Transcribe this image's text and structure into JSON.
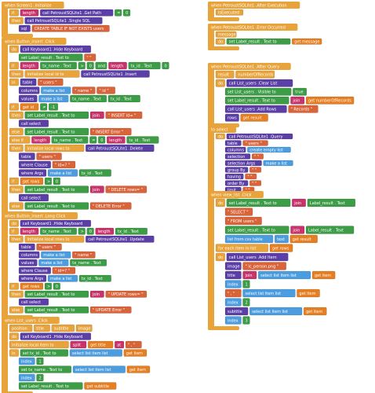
{
  "groups": [
    {
      "header": "when Screen1 .Initialize",
      "rows": [
        [
          {
            "t": "if",
            "c": "#e8a33a"
          },
          {
            "t": "length",
            "c": "#c8336b"
          },
          {
            "t": "call PetroustSQLite1 .Get Path",
            "c": "#5b3fa6"
          },
          {
            "t": "=",
            "c": "#3d9c46"
          },
          {
            "t": "0",
            "c": "#3d9c46"
          }
        ],
        [
          {
            "t": "then",
            "c": "#e8a33a"
          },
          {
            "t": "call PetroustSQLite1 .Single SQL",
            "c": "#5b3fa6"
          }
        ],
        [
          {
            "t": "sql",
            "c": "#5b3fa6"
          },
          {
            "t": "CREATE TABLE IF NOT EXISTS users",
            "c": "#d9643a"
          }
        ]
      ]
    },
    {
      "header": "when Button_insert .Click",
      "rows": [
        [
          {
            "t": "do",
            "c": "#e8a33a"
          },
          {
            "t": "call Keyboard1 .Hide Keyboard",
            "c": "#5b3fa6"
          }
        ],
        [
          {
            "t": "set Label_result . Text to",
            "c": "#3d9c46"
          },
          {
            "t": "\" \"",
            "c": "#d9643a"
          }
        ],
        [
          {
            "t": "if",
            "c": "#e8a33a"
          },
          {
            "t": "length",
            "c": "#c8336b"
          },
          {
            "t": "tx_name . Text",
            "c": "#3d9c46"
          },
          {
            "t": ">",
            "c": "#3d9c46"
          },
          {
            "t": "0",
            "c": "#3d9c46"
          },
          {
            "t": "and",
            "c": "#3d9c46"
          },
          {
            "t": "length",
            "c": "#c8336b"
          },
          {
            "t": "tx_id . Text",
            "c": "#3d9c46"
          },
          {
            "t": "0",
            "c": "#3d9c46"
          }
        ],
        [
          {
            "t": "then",
            "c": "#e8a33a"
          },
          {
            "t": "initialize local id to",
            "c": "#e8a33a"
          },
          {
            "t": "call PetroustSQLite1 .Insert",
            "c": "#5b3fa6"
          }
        ],
        [
          {
            "t": "in",
            "c": "#e8a33a"
          },
          {
            "t": "table",
            "c": "#5b3fa6"
          },
          {
            "t": "\" users \"",
            "c": "#d9643a"
          }
        ],
        [
          {
            "t": "columns",
            "c": "#5b3fa6"
          },
          {
            "t": "make a list",
            "c": "#4c9de0"
          },
          {
            "t": "\" name \"",
            "c": "#d9643a"
          },
          {
            "t": "\" id \"",
            "c": "#d9643a"
          }
        ],
        [
          {
            "t": "values",
            "c": "#5b3fa6"
          },
          {
            "t": "make a list",
            "c": "#4c9de0"
          },
          {
            "t": "tx_name . Text",
            "c": "#3d9c46"
          },
          {
            "t": "tx_id . Text",
            "c": "#3d9c46"
          }
        ],
        [
          {
            "t": "if",
            "c": "#e8a33a"
          },
          {
            "t": "get id",
            "c": "#e67e22"
          },
          {
            "t": "≠",
            "c": "#3d9c46"
          },
          {
            "t": "-1",
            "c": "#3d9c46"
          }
        ],
        [
          {
            "t": "then",
            "c": "#e8a33a"
          },
          {
            "t": "set Label_result . Text to",
            "c": "#3d9c46"
          },
          {
            "t": "join",
            "c": "#c8336b"
          },
          {
            "t": "\" INSERT id= \"",
            "c": "#d9643a"
          }
        ],
        [
          {
            "t": "call select",
            "c": "#5b3fa6"
          }
        ],
        [
          {
            "t": "else",
            "c": "#e8a33a"
          },
          {
            "t": "set Label_result . Text to",
            "c": "#3d9c46"
          },
          {
            "t": "\" INSERT Error \"",
            "c": "#d9643a"
          }
        ],
        [
          {
            "t": "else if",
            "c": "#e8a33a"
          },
          {
            "t": "length",
            "c": "#c8336b"
          },
          {
            "t": "tx_name . Text",
            "c": "#3d9c46"
          },
          {
            "t": "=",
            "c": "#3d9c46"
          },
          {
            "t": "0",
            "c": "#3d9c46"
          },
          {
            "t": "length",
            "c": "#c8336b"
          },
          {
            "t": "tx_id . Text",
            "c": "#3d9c46"
          }
        ],
        [
          {
            "t": "then",
            "c": "#e8a33a"
          },
          {
            "t": "initialize local rows to",
            "c": "#e8a33a"
          },
          {
            "t": "call PetroustSQLite1 .Delete",
            "c": "#5b3fa6"
          }
        ],
        [
          {
            "t": "table",
            "c": "#5b3fa6"
          },
          {
            "t": "\" users \"",
            "c": "#d9643a"
          }
        ],
        [
          {
            "t": "where Clause",
            "c": "#5b3fa6"
          },
          {
            "t": "\" id=? \"",
            "c": "#d9643a"
          }
        ],
        [
          {
            "t": "where Args",
            "c": "#5b3fa6"
          },
          {
            "t": "make a list",
            "c": "#4c9de0"
          },
          {
            "t": "tx_id . Text",
            "c": "#3d9c46"
          }
        ],
        [
          {
            "t": "if",
            "c": "#e8a33a"
          },
          {
            "t": "get rows",
            "c": "#e67e22"
          },
          {
            "t": ">",
            "c": "#3d9c46"
          },
          {
            "t": "0",
            "c": "#3d9c46"
          }
        ],
        [
          {
            "t": "then",
            "c": "#e8a33a"
          },
          {
            "t": "set Label_result . Text to",
            "c": "#3d9c46"
          },
          {
            "t": "join",
            "c": "#c8336b"
          },
          {
            "t": "\" DELETE rows= \"",
            "c": "#d9643a"
          }
        ],
        [
          {
            "t": "call select",
            "c": "#5b3fa6"
          }
        ],
        [
          {
            "t": "else",
            "c": "#e8a33a"
          },
          {
            "t": "set Label_result . Text to",
            "c": "#3d9c46"
          },
          {
            "t": "\" DELETE Error \"",
            "c": "#d9643a"
          }
        ]
      ]
    },
    {
      "header": "when Button_insert .Long Click",
      "rows": [
        [
          {
            "t": "do",
            "c": "#e8a33a"
          },
          {
            "t": "call Keyboard1 .Hide Keyboard",
            "c": "#5b3fa6"
          }
        ],
        [
          {
            "t": "if",
            "c": "#e8a33a"
          },
          {
            "t": "length",
            "c": "#c8336b"
          },
          {
            "t": "tx_name . Text",
            "c": "#3d9c46"
          },
          {
            "t": ">",
            "c": "#3d9c46"
          },
          {
            "t": "0",
            "c": "#3d9c46"
          },
          {
            "t": "length",
            "c": "#c8336b"
          },
          {
            "t": "tx_id . Text",
            "c": "#3d9c46"
          }
        ],
        [
          {
            "t": "then",
            "c": "#e8a33a"
          },
          {
            "t": "initialize local rows to",
            "c": "#e8a33a"
          },
          {
            "t": "call PetroustSQLite1 .Update",
            "c": "#5b3fa6"
          }
        ],
        [
          {
            "t": "table",
            "c": "#5b3fa6"
          },
          {
            "t": "\" users \"",
            "c": "#d9643a"
          }
        ],
        [
          {
            "t": "columns",
            "c": "#5b3fa6"
          },
          {
            "t": "make a list",
            "c": "#4c9de0"
          },
          {
            "t": "\" name \"",
            "c": "#d9643a"
          }
        ],
        [
          {
            "t": "values",
            "c": "#5b3fa6"
          },
          {
            "t": "make a list",
            "c": "#4c9de0"
          },
          {
            "t": "tx_name . Text",
            "c": "#3d9c46"
          }
        ],
        [
          {
            "t": "where Clause",
            "c": "#5b3fa6"
          },
          {
            "t": "\" id=? \"",
            "c": "#d9643a"
          }
        ],
        [
          {
            "t": "where Args",
            "c": "#5b3fa6"
          },
          {
            "t": "make a list",
            "c": "#4c9de0"
          },
          {
            "t": "tx_id . Text",
            "c": "#3d9c46"
          }
        ],
        [
          {
            "t": "if",
            "c": "#e8a33a"
          },
          {
            "t": "get rows",
            "c": "#e67e22"
          },
          {
            "t": ">",
            "c": "#3d9c46"
          },
          {
            "t": "0",
            "c": "#3d9c46"
          }
        ],
        [
          {
            "t": "then",
            "c": "#e8a33a"
          },
          {
            "t": "set Label_result . Text to",
            "c": "#3d9c46"
          },
          {
            "t": "join",
            "c": "#c8336b"
          },
          {
            "t": "\" UPDATE rows= \"",
            "c": "#d9643a"
          }
        ],
        [
          {
            "t": "call select",
            "c": "#5b3fa6"
          }
        ],
        [
          {
            "t": "else",
            "c": "#e8a33a"
          },
          {
            "t": "set Label_result . Text to",
            "c": "#3d9c46"
          },
          {
            "t": "\" UPDATE Error \"",
            "c": "#d9643a"
          }
        ]
      ]
    },
    {
      "header": "when List_users .Click",
      "rows": [
        [
          {
            "t": "position",
            "c": "#e8a33a"
          },
          {
            "t": "title",
            "c": "#e8a33a"
          },
          {
            "t": "subtitle",
            "c": "#e8a33a"
          },
          {
            "t": "image",
            "c": "#e8a33a"
          }
        ],
        [
          {
            "t": "do",
            "c": "#e8a33a"
          },
          {
            "t": "call Keyboard1 .Hide Keyboard",
            "c": "#5b3fa6"
          }
        ],
        [
          {
            "t": "initialize local item to",
            "c": "#e8a33a"
          },
          {
            "t": "split",
            "c": "#c8336b"
          },
          {
            "t": "get title",
            "c": "#e67e22"
          },
          {
            "t": "at",
            "c": "#c8336b"
          },
          {
            "t": "\" , \"",
            "c": "#d9643a"
          }
        ],
        [
          {
            "t": "in",
            "c": "#e8a33a"
          },
          {
            "t": "set tx_id . Text to",
            "c": "#3d9c46"
          },
          {
            "t": "select list item list",
            "c": "#4c9de0"
          },
          {
            "t": "get item",
            "c": "#e67e22"
          }
        ],
        [
          {
            "t": "index",
            "c": "#4c9de0"
          },
          {
            "t": "1",
            "c": "#3d9c46"
          }
        ],
        [
          {
            "t": "set tx_name . Text to",
            "c": "#3d9c46"
          },
          {
            "t": "select list item list",
            "c": "#4c9de0"
          },
          {
            "t": "get item",
            "c": "#e67e22"
          }
        ],
        [
          {
            "t": "index",
            "c": "#4c9de0"
          },
          {
            "t": "2",
            "c": "#3d9c46"
          }
        ],
        [
          {
            "t": "set Label_result . Text to",
            "c": "#3d9c46"
          },
          {
            "t": "get subtitle",
            "c": "#e67e22"
          }
        ]
      ]
    },
    {
      "header": "when PetroustSQLite1 .After Execution",
      "rows": [
        [
          {
            "t": "isExecuted",
            "c": "#e8a33a"
          }
        ]
      ]
    },
    {
      "header": "when PetroustSQLite1 .Error Occurred",
      "rows": [
        [
          {
            "t": "message",
            "c": "#e8a33a"
          }
        ],
        [
          {
            "t": "do",
            "c": "#e8a33a"
          },
          {
            "t": "set Label_result . Text to",
            "c": "#3d9c46"
          },
          {
            "t": "get message",
            "c": "#e67e22"
          }
        ]
      ]
    },
    {
      "header": "when PetroustSQLite1 .After Query",
      "rows": [
        [
          {
            "t": "result",
            "c": "#e8a33a"
          },
          {
            "t": "numberOfRecords",
            "c": "#e8a33a"
          }
        ],
        [
          {
            "t": "do",
            "c": "#e8a33a"
          },
          {
            "t": "call List_users .Clear List",
            "c": "#5b3fa6"
          }
        ],
        [
          {
            "t": "set List_users . Visible to",
            "c": "#3d9c46"
          },
          {
            "t": "true",
            "c": "#3d9c46"
          }
        ],
        [
          {
            "t": "set Label_result . Text to",
            "c": "#3d9c46"
          },
          {
            "t": "join",
            "c": "#c8336b"
          },
          {
            "t": "get numberOfRecords",
            "c": "#e67e22"
          }
        ],
        [
          {
            "t": "call List_users .Add Rows",
            "c": "#5b3fa6"
          },
          {
            "t": "\" Records \"",
            "c": "#d9643a"
          }
        ],
        [
          {
            "t": "rows",
            "c": "#5b3fa6"
          },
          {
            "t": "get result",
            "c": "#e67e22"
          }
        ]
      ]
    },
    {
      "header": "to select",
      "rows": [
        [
          {
            "t": "do",
            "c": "#e8a33a"
          },
          {
            "t": "call PetroustSQLite1 .Query",
            "c": "#5b3fa6"
          }
        ],
        [
          {
            "t": "table",
            "c": "#5b3fa6"
          },
          {
            "t": "\" users \"",
            "c": "#d9643a"
          }
        ],
        [
          {
            "t": "columns",
            "c": "#5b3fa6"
          },
          {
            "t": "create empty list",
            "c": "#4c9de0"
          }
        ],
        [
          {
            "t": "selection",
            "c": "#5b3fa6"
          },
          {
            "t": "\" \"",
            "c": "#d9643a"
          }
        ],
        [
          {
            "t": "selection Args",
            "c": "#5b3fa6"
          },
          {
            "t": "make a list",
            "c": "#4c9de0"
          }
        ],
        [
          {
            "t": "group By",
            "c": "#5b3fa6"
          },
          {
            "t": "\" \"",
            "c": "#d9643a"
          }
        ],
        [
          {
            "t": "having",
            "c": "#5b3fa6"
          },
          {
            "t": "\" \"",
            "c": "#d9643a"
          }
        ],
        [
          {
            "t": "order By",
            "c": "#5b3fa6"
          },
          {
            "t": "\" \"",
            "c": "#d9643a"
          }
        ],
        [
          {
            "t": "limit",
            "c": "#5b3fa6"
          },
          {
            "t": "\" \"",
            "c": "#d9643a"
          }
        ]
      ]
    },
    {
      "header": "when view_list .Click",
      "rows": [
        [
          {
            "t": "do",
            "c": "#e8a33a"
          },
          {
            "t": "set Label_result . Text to",
            "c": "#3d9c46"
          },
          {
            "t": "join",
            "c": "#c8336b"
          },
          {
            "t": "Label_result . Text",
            "c": "#3d9c46"
          }
        ],
        [
          {
            "t": "\" SELECT \"",
            "c": "#d9643a"
          }
        ],
        [
          {
            "t": "\" FROM users \"",
            "c": "#d9643a"
          }
        ],
        [
          {
            "t": "set Label_result . Text to",
            "c": "#3d9c46"
          },
          {
            "t": "join",
            "c": "#c8336b"
          },
          {
            "t": "Label_result . Text",
            "c": "#3d9c46"
          }
        ],
        [
          {
            "t": "list from csv table",
            "c": "#4c9de0"
          },
          {
            "t": "text",
            "c": "#4c9de0"
          },
          {
            "t": "get result",
            "c": "#e67e22"
          }
        ],
        [
          {
            "t": "for each item in list",
            "c": "#e8a33a"
          },
          {
            "t": "get rows",
            "c": "#e67e22"
          }
        ],
        [
          {
            "t": "do",
            "c": "#e8a33a"
          },
          {
            "t": "call List_users .Add Item",
            "c": "#5b3fa6"
          }
        ],
        [
          {
            "t": "image",
            "c": "#5b3fa6"
          },
          {
            "t": "\" ic_person.png \"",
            "c": "#d9643a"
          }
        ],
        [
          {
            "t": "title",
            "c": "#5b3fa6"
          },
          {
            "t": "join",
            "c": "#c8336b"
          },
          {
            "t": "select list item list",
            "c": "#4c9de0"
          },
          {
            "t": "get item",
            "c": "#e67e22"
          }
        ],
        [
          {
            "t": "index",
            "c": "#4c9de0"
          },
          {
            "t": "1",
            "c": "#3d9c46"
          }
        ],
        [
          {
            "t": "\" , \"",
            "c": "#d9643a"
          },
          {
            "t": "select list item list",
            "c": "#4c9de0"
          },
          {
            "t": "get item",
            "c": "#e67e22"
          }
        ],
        [
          {
            "t": "index",
            "c": "#4c9de0"
          },
          {
            "t": "2",
            "c": "#3d9c46"
          }
        ],
        [
          {
            "t": "subtitle",
            "c": "#5b3fa6"
          },
          {
            "t": "select list item list",
            "c": "#4c9de0"
          },
          {
            "t": "get item",
            "c": "#e67e22"
          }
        ],
        [
          {
            "t": "index",
            "c": "#4c9de0"
          },
          {
            "t": "3",
            "c": "#3d9c46"
          }
        ]
      ]
    }
  ]
}
